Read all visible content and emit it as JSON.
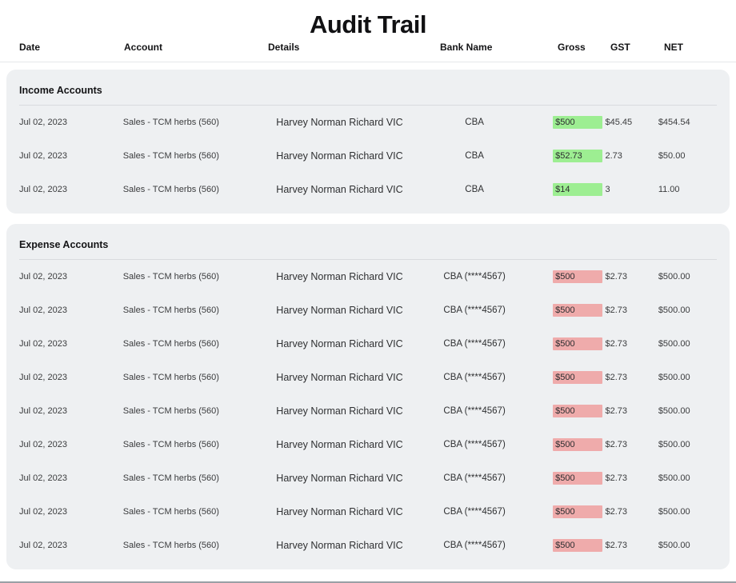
{
  "page": {
    "title": "Audit Trail"
  },
  "table": {
    "columns": [
      "Date",
      "Account",
      "Details",
      "Bank Name",
      "Gross",
      "GST",
      "NET"
    ]
  },
  "colors": {
    "section_bg": "#eef0f2",
    "income_highlight": "#9dee92",
    "expense_highlight": "#efabab"
  },
  "sections": [
    {
      "title": "Income Accounts",
      "highlight": "income_highlight",
      "rows": [
        {
          "date": "Jul 02, 2023",
          "account": "Sales - TCM herbs (560)",
          "details": "Harvey Norman Richard VIC",
          "bank": "CBA",
          "gross": "$500",
          "gst": "$45.45",
          "net": "$454.54"
        },
        {
          "date": "Jul 02, 2023",
          "account": "Sales - TCM herbs (560)",
          "details": "Harvey Norman Richard VIC",
          "bank": "CBA",
          "gross": "$52.73",
          "gst": "2.73",
          "net": "$50.00"
        },
        {
          "date": "Jul 02, 2023",
          "account": "Sales - TCM herbs (560)",
          "details": "Harvey Norman Richard VIC",
          "bank": "CBA",
          "gross": "$14",
          "gst": "3",
          "net": "11.00"
        }
      ]
    },
    {
      "title": "Expense Accounts",
      "highlight": "expense_highlight",
      "rows": [
        {
          "date": "Jul 02, 2023",
          "account": "Sales - TCM herbs (560)",
          "details": "Harvey Norman Richard VIC",
          "bank": "CBA (****4567)",
          "gross": "$500",
          "gst": "$2.73",
          "net": "$500.00"
        },
        {
          "date": "Jul 02, 2023",
          "account": "Sales - TCM herbs (560)",
          "details": "Harvey Norman Richard VIC",
          "bank": "CBA (****4567)",
          "gross": "$500",
          "gst": "$2.73",
          "net": "$500.00"
        },
        {
          "date": "Jul 02, 2023",
          "account": "Sales - TCM herbs (560)",
          "details": "Harvey Norman Richard VIC",
          "bank": "CBA (****4567)",
          "gross": "$500",
          "gst": "$2.73",
          "net": "$500.00"
        },
        {
          "date": "Jul 02, 2023",
          "account": "Sales - TCM herbs (560)",
          "details": "Harvey Norman Richard VIC",
          "bank": "CBA (****4567)",
          "gross": "$500",
          "gst": "$2.73",
          "net": "$500.00"
        },
        {
          "date": "Jul 02, 2023",
          "account": "Sales - TCM herbs (560)",
          "details": "Harvey Norman Richard VIC",
          "bank": "CBA (****4567)",
          "gross": "$500",
          "gst": "$2.73",
          "net": "$500.00"
        },
        {
          "date": "Jul 02, 2023",
          "account": "Sales - TCM herbs (560)",
          "details": "Harvey Norman Richard VIC",
          "bank": "CBA (****4567)",
          "gross": "$500",
          "gst": "$2.73",
          "net": "$500.00"
        },
        {
          "date": "Jul 02, 2023",
          "account": "Sales - TCM herbs (560)",
          "details": "Harvey Norman Richard VIC",
          "bank": "CBA (****4567)",
          "gross": "$500",
          "gst": "$2.73",
          "net": "$500.00"
        },
        {
          "date": "Jul 02, 2023",
          "account": "Sales - TCM herbs (560)",
          "details": "Harvey Norman Richard VIC",
          "bank": "CBA (****4567)",
          "gross": "$500",
          "gst": "$2.73",
          "net": "$500.00"
        },
        {
          "date": "Jul 02, 2023",
          "account": "Sales - TCM herbs (560)",
          "details": "Harvey Norman Richard VIC",
          "bank": "CBA (****4567)",
          "gross": "$500",
          "gst": "$2.73",
          "net": "$500.00"
        }
      ]
    }
  ]
}
